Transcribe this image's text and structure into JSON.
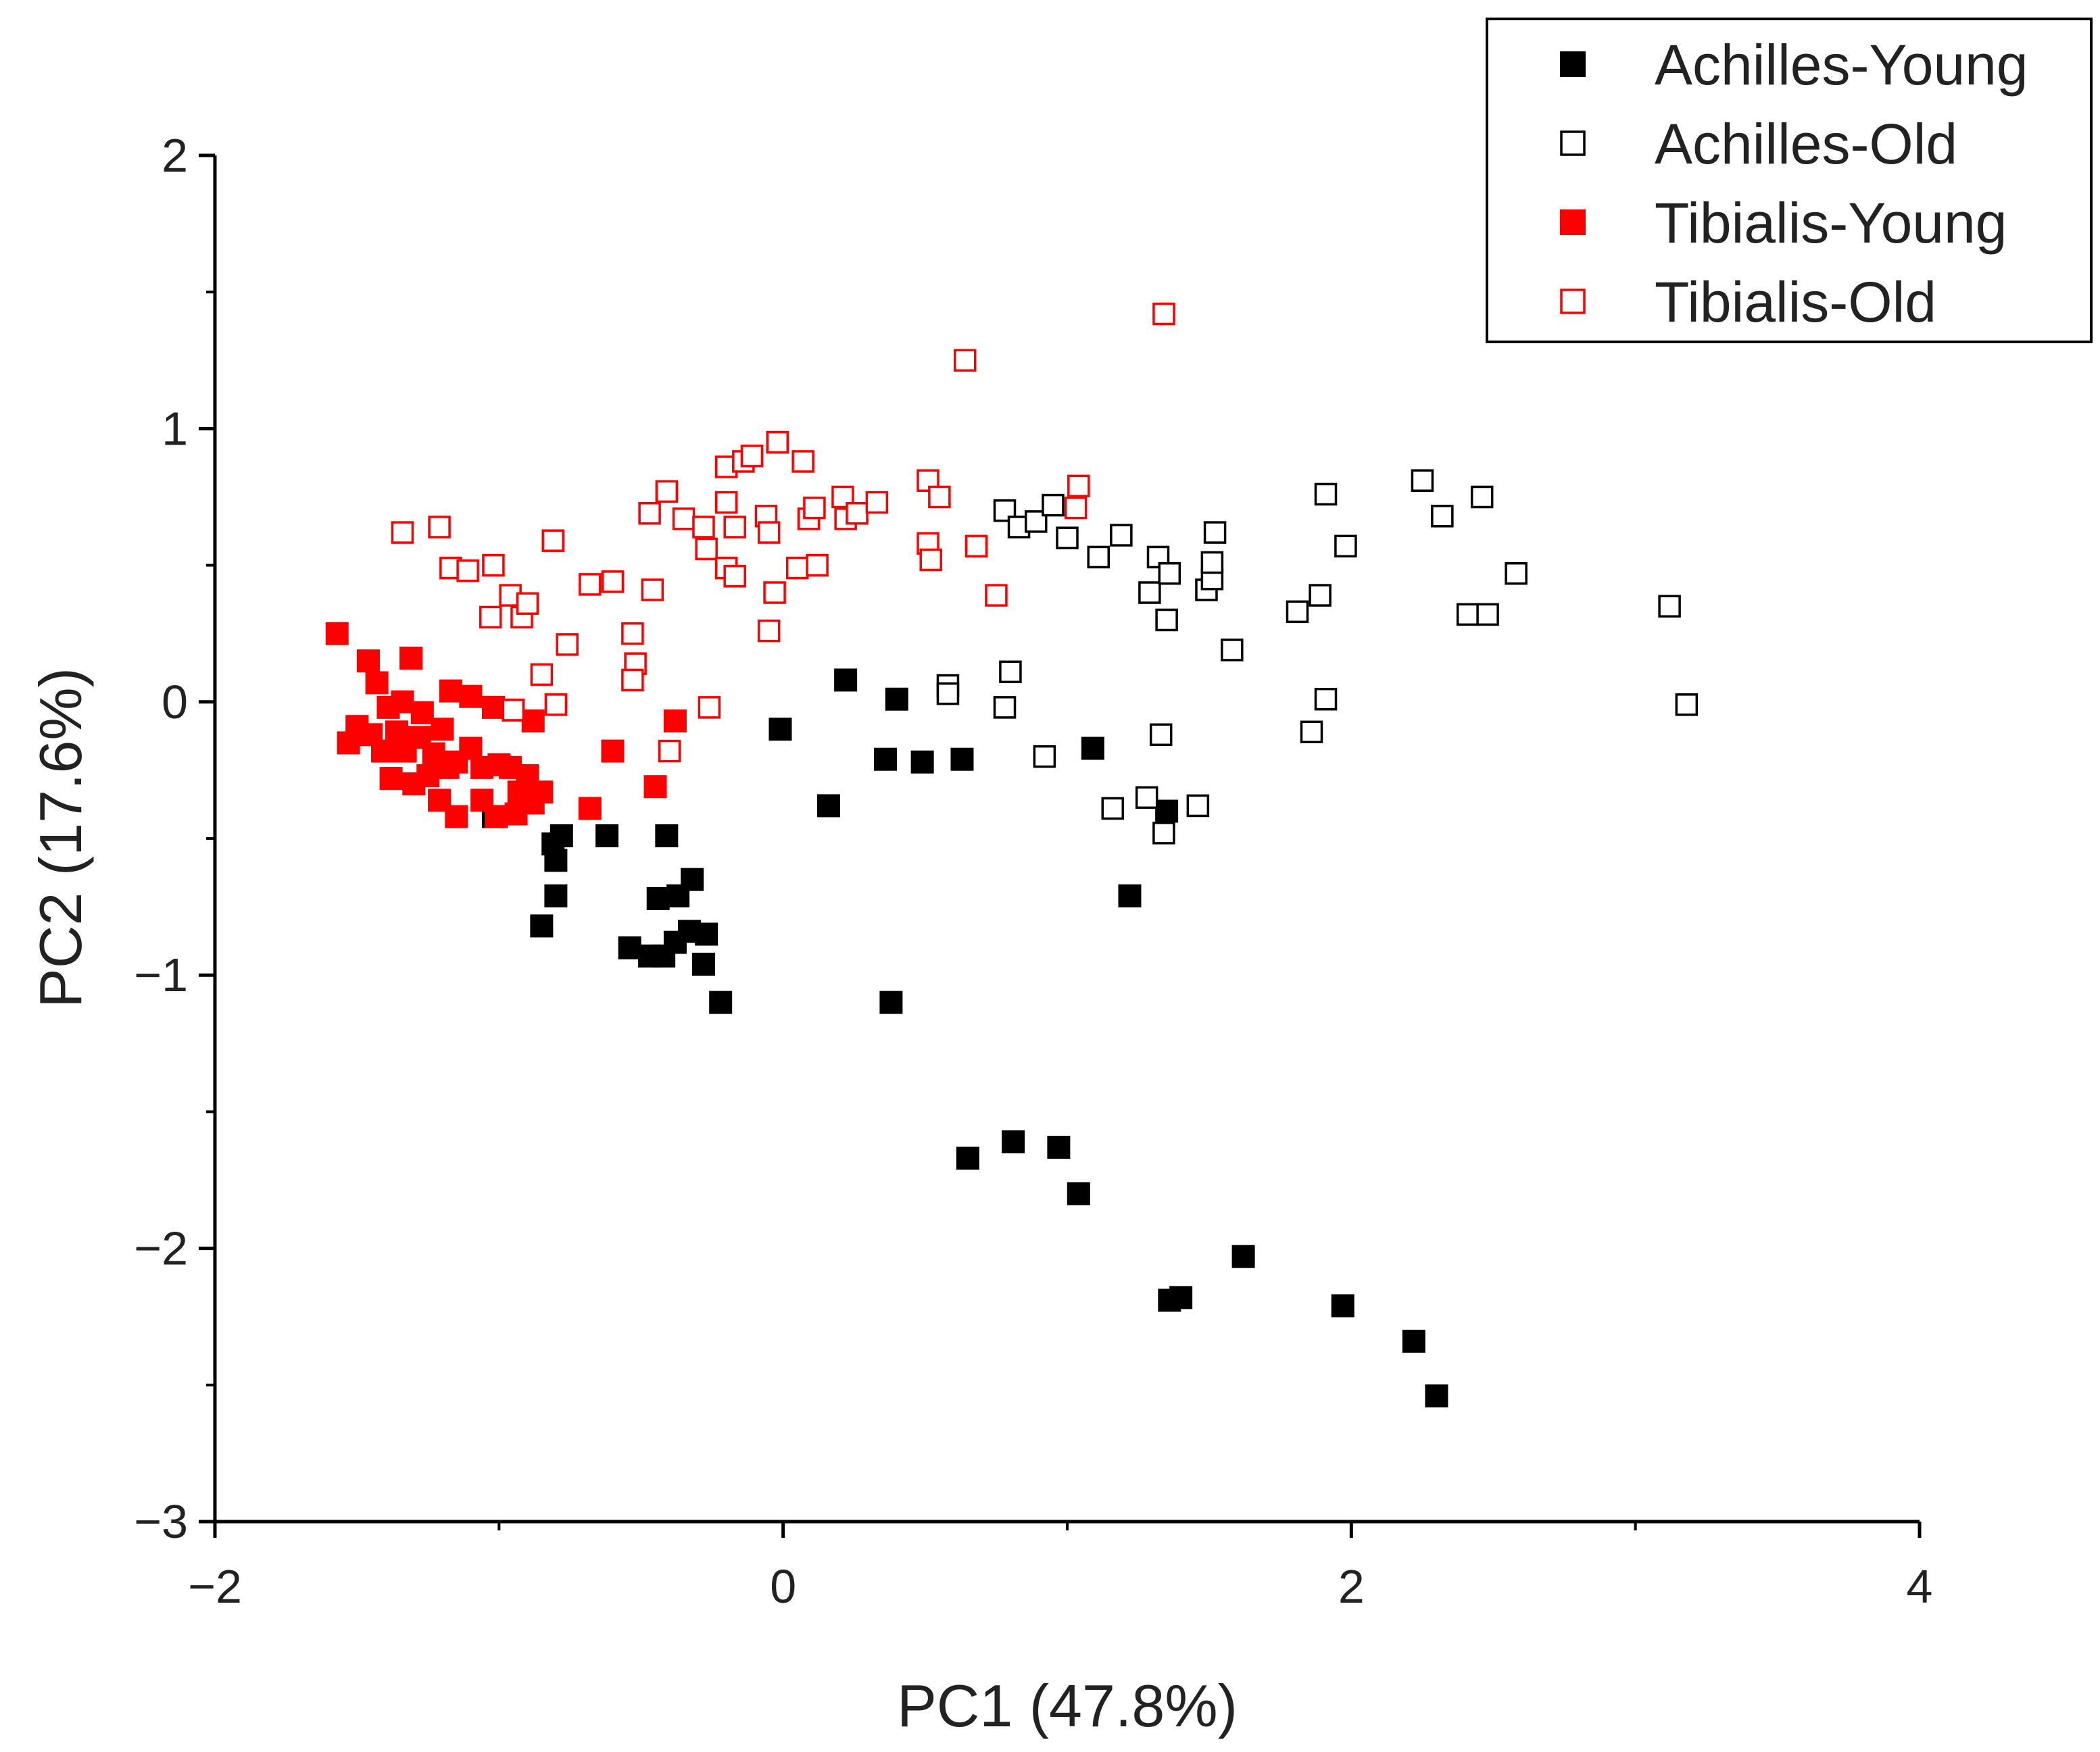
{
  "chart_data": {
    "type": "scatter",
    "xlabel": "PC1 (47.8%)",
    "ylabel": "PC2 (17.6%)",
    "xlim": [
      -2,
      4
    ],
    "ylim": [
      -3,
      2
    ],
    "xticks": [
      -2,
      0,
      2,
      4
    ],
    "yticks": [
      -3,
      -2,
      -1,
      0,
      1,
      2
    ],
    "xtick_labels": [
      "−2",
      "0",
      "2",
      "4"
    ],
    "ytick_labels": [
      "−3",
      "−2",
      "−1",
      "0",
      "1",
      "2"
    ],
    "x_minor_step": 1,
    "y_minor_step": 0.5,
    "grid": false,
    "legend_position": "top-right",
    "series": [
      {
        "name": "Achilles-Young",
        "marker": "filled-square",
        "color": "#000000",
        "points": [
          [
            0.22,
            0.08
          ],
          [
            0.4,
            0.01
          ],
          [
            0.16,
            -0.38
          ],
          [
            -0.01,
            -0.1
          ],
          [
            0.36,
            -0.21
          ],
          [
            0.49,
            -0.22
          ],
          [
            0.63,
            -0.21
          ],
          [
            1.09,
            -0.17
          ],
          [
            1.22,
            -0.71
          ],
          [
            1.35,
            -0.4
          ],
          [
            0.38,
            -1.1
          ],
          [
            -0.22,
            -1.1
          ],
          [
            -0.28,
            -0.96
          ],
          [
            -0.27,
            -0.85
          ],
          [
            -0.33,
            -0.84
          ],
          [
            -0.38,
            -0.88
          ],
          [
            -0.42,
            -0.93
          ],
          [
            -0.47,
            -0.93
          ],
          [
            -0.54,
            -0.9
          ],
          [
            -0.37,
            -0.71
          ],
          [
            -0.32,
            -0.65
          ],
          [
            -0.44,
            -0.72
          ],
          [
            -0.41,
            -0.49
          ],
          [
            -0.62,
            -0.49
          ],
          [
            -0.78,
            -0.49
          ],
          [
            -0.81,
            -0.52
          ],
          [
            -0.8,
            -0.58
          ],
          [
            -0.8,
            -0.71
          ],
          [
            -0.85,
            -0.82
          ],
          [
            -1.02,
            -0.42
          ],
          [
            0.65,
            -1.67
          ],
          [
            0.81,
            -1.61
          ],
          [
            0.97,
            -1.63
          ],
          [
            1.04,
            -1.8
          ],
          [
            1.36,
            -2.19
          ],
          [
            1.4,
            -2.18
          ],
          [
            1.62,
            -2.03
          ],
          [
            1.97,
            -2.21
          ],
          [
            2.22,
            -2.34
          ],
          [
            2.3,
            -2.54
          ]
        ]
      },
      {
        "name": "Achilles-Old",
        "marker": "open-square",
        "color": "#000000",
        "points": [
          [
            0.58,
            0.06
          ],
          [
            0.58,
            0.03
          ],
          [
            0.78,
            -0.02
          ],
          [
            0.8,
            0.11
          ],
          [
            0.92,
            -0.2
          ],
          [
            0.78,
            0.7
          ],
          [
            0.83,
            0.64
          ],
          [
            0.89,
            0.66
          ],
          [
            0.95,
            0.72
          ],
          [
            1.0,
            0.6
          ],
          [
            1.11,
            0.53
          ],
          [
            1.19,
            0.61
          ],
          [
            1.32,
            0.53
          ],
          [
            1.29,
            0.4
          ],
          [
            1.35,
            0.3
          ],
          [
            1.36,
            0.47
          ],
          [
            1.49,
            0.41
          ],
          [
            1.51,
            0.45
          ],
          [
            1.51,
            0.51
          ],
          [
            1.52,
            0.62
          ],
          [
            1.58,
            0.19
          ],
          [
            1.33,
            -0.12
          ],
          [
            1.28,
            -0.35
          ],
          [
            1.16,
            -0.39
          ],
          [
            1.46,
            -0.38
          ],
          [
            1.34,
            -0.48
          ],
          [
            1.81,
            0.33
          ],
          [
            1.89,
            0.39
          ],
          [
            1.91,
            0.76
          ],
          [
            1.91,
            0.01
          ],
          [
            1.86,
            -0.11
          ],
          [
            1.98,
            0.57
          ],
          [
            2.25,
            0.81
          ],
          [
            2.32,
            0.68
          ],
          [
            2.46,
            0.75
          ],
          [
            2.41,
            0.32
          ],
          [
            2.48,
            0.32
          ],
          [
            2.58,
            0.47
          ],
          [
            3.12,
            0.35
          ],
          [
            3.18,
            -0.01
          ]
        ]
      },
      {
        "name": "Tibialis-Young",
        "marker": "filled-square",
        "color": "#ff0000",
        "points": [
          [
            -1.57,
            0.25
          ],
          [
            -1.46,
            0.15
          ],
          [
            -1.43,
            0.07
          ],
          [
            -1.31,
            0.16
          ],
          [
            -1.39,
            -0.02
          ],
          [
            -1.34,
            0.0
          ],
          [
            -1.27,
            -0.04
          ],
          [
            -1.2,
            -0.1
          ],
          [
            -1.17,
            0.04
          ],
          [
            -1.1,
            0.02
          ],
          [
            -1.02,
            -0.02
          ],
          [
            -0.95,
            -0.03
          ],
          [
            -0.88,
            -0.07
          ],
          [
            -1.5,
            -0.09
          ],
          [
            -1.53,
            -0.15
          ],
          [
            -1.45,
            -0.12
          ],
          [
            -1.41,
            -0.18
          ],
          [
            -1.36,
            -0.11
          ],
          [
            -1.33,
            -0.18
          ],
          [
            -1.28,
            -0.13
          ],
          [
            -1.23,
            -0.19
          ],
          [
            -1.25,
            -0.27
          ],
          [
            -1.18,
            -0.24
          ],
          [
            -1.15,
            -0.22
          ],
          [
            -1.1,
            -0.17
          ],
          [
            -1.06,
            -0.24
          ],
          [
            -1.0,
            -0.23
          ],
          [
            -0.96,
            -0.24
          ],
          [
            -0.9,
            -0.27
          ],
          [
            -0.85,
            -0.33
          ],
          [
            -0.93,
            -0.33
          ],
          [
            -1.38,
            -0.28
          ],
          [
            -1.3,
            -0.3
          ],
          [
            -1.21,
            -0.36
          ],
          [
            -1.15,
            -0.42
          ],
          [
            -1.06,
            -0.36
          ],
          [
            -1.01,
            -0.42
          ],
          [
            -0.94,
            -0.41
          ],
          [
            -0.88,
            -0.37
          ],
          [
            -0.68,
            -0.39
          ],
          [
            -0.6,
            -0.18
          ],
          [
            -0.45,
            -0.31
          ],
          [
            -0.38,
            -0.07
          ]
        ]
      },
      {
        "name": "Tibialis-Old",
        "marker": "open-square",
        "color": "#ff0000",
        "points": [
          [
            -1.34,
            0.62
          ],
          [
            -1.21,
            0.64
          ],
          [
            -1.17,
            0.49
          ],
          [
            -1.11,
            0.48
          ],
          [
            -1.02,
            0.5
          ],
          [
            -0.96,
            0.39
          ],
          [
            -1.03,
            0.31
          ],
          [
            -0.92,
            0.31
          ],
          [
            -0.9,
            0.36
          ],
          [
            -0.81,
            0.59
          ],
          [
            -0.85,
            0.1
          ],
          [
            -0.76,
            0.21
          ],
          [
            -0.8,
            -0.01
          ],
          [
            -0.95,
            -0.03
          ],
          [
            -0.68,
            0.43
          ],
          [
            -0.6,
            0.44
          ],
          [
            -0.46,
            0.41
          ],
          [
            -0.47,
            0.69
          ],
          [
            -0.53,
            0.25
          ],
          [
            -0.52,
            0.14
          ],
          [
            -0.53,
            0.08
          ],
          [
            -0.41,
            0.77
          ],
          [
            -0.35,
            0.67
          ],
          [
            -0.4,
            -0.18
          ],
          [
            -0.28,
            0.64
          ],
          [
            -0.27,
            0.56
          ],
          [
            -0.26,
            -0.02
          ],
          [
            -0.2,
            0.73
          ],
          [
            -0.2,
            0.86
          ],
          [
            -0.14,
            0.88
          ],
          [
            -0.17,
            0.64
          ],
          [
            -0.2,
            0.49
          ],
          [
            -0.17,
            0.46
          ],
          [
            -0.11,
            0.9
          ],
          [
            -0.02,
            0.95
          ],
          [
            -0.06,
            0.68
          ],
          [
            -0.05,
            0.62
          ],
          [
            -0.03,
            0.4
          ],
          [
            -0.05,
            0.26
          ],
          [
            0.05,
            0.49
          ],
          [
            0.07,
            0.88
          ],
          [
            0.09,
            0.67
          ],
          [
            0.11,
            0.71
          ],
          [
            0.12,
            0.5
          ],
          [
            0.21,
            0.75
          ],
          [
            0.22,
            0.67
          ],
          [
            0.26,
            0.69
          ],
          [
            0.33,
            0.73
          ],
          [
            0.51,
            0.81
          ],
          [
            0.55,
            0.75
          ],
          [
            0.51,
            0.58
          ],
          [
            0.52,
            0.52
          ],
          [
            0.64,
            1.25
          ],
          [
            0.68,
            0.57
          ],
          [
            0.75,
            0.39
          ],
          [
            1.04,
            0.79
          ],
          [
            1.03,
            0.71
          ],
          [
            1.34,
            1.42
          ]
        ]
      }
    ]
  }
}
